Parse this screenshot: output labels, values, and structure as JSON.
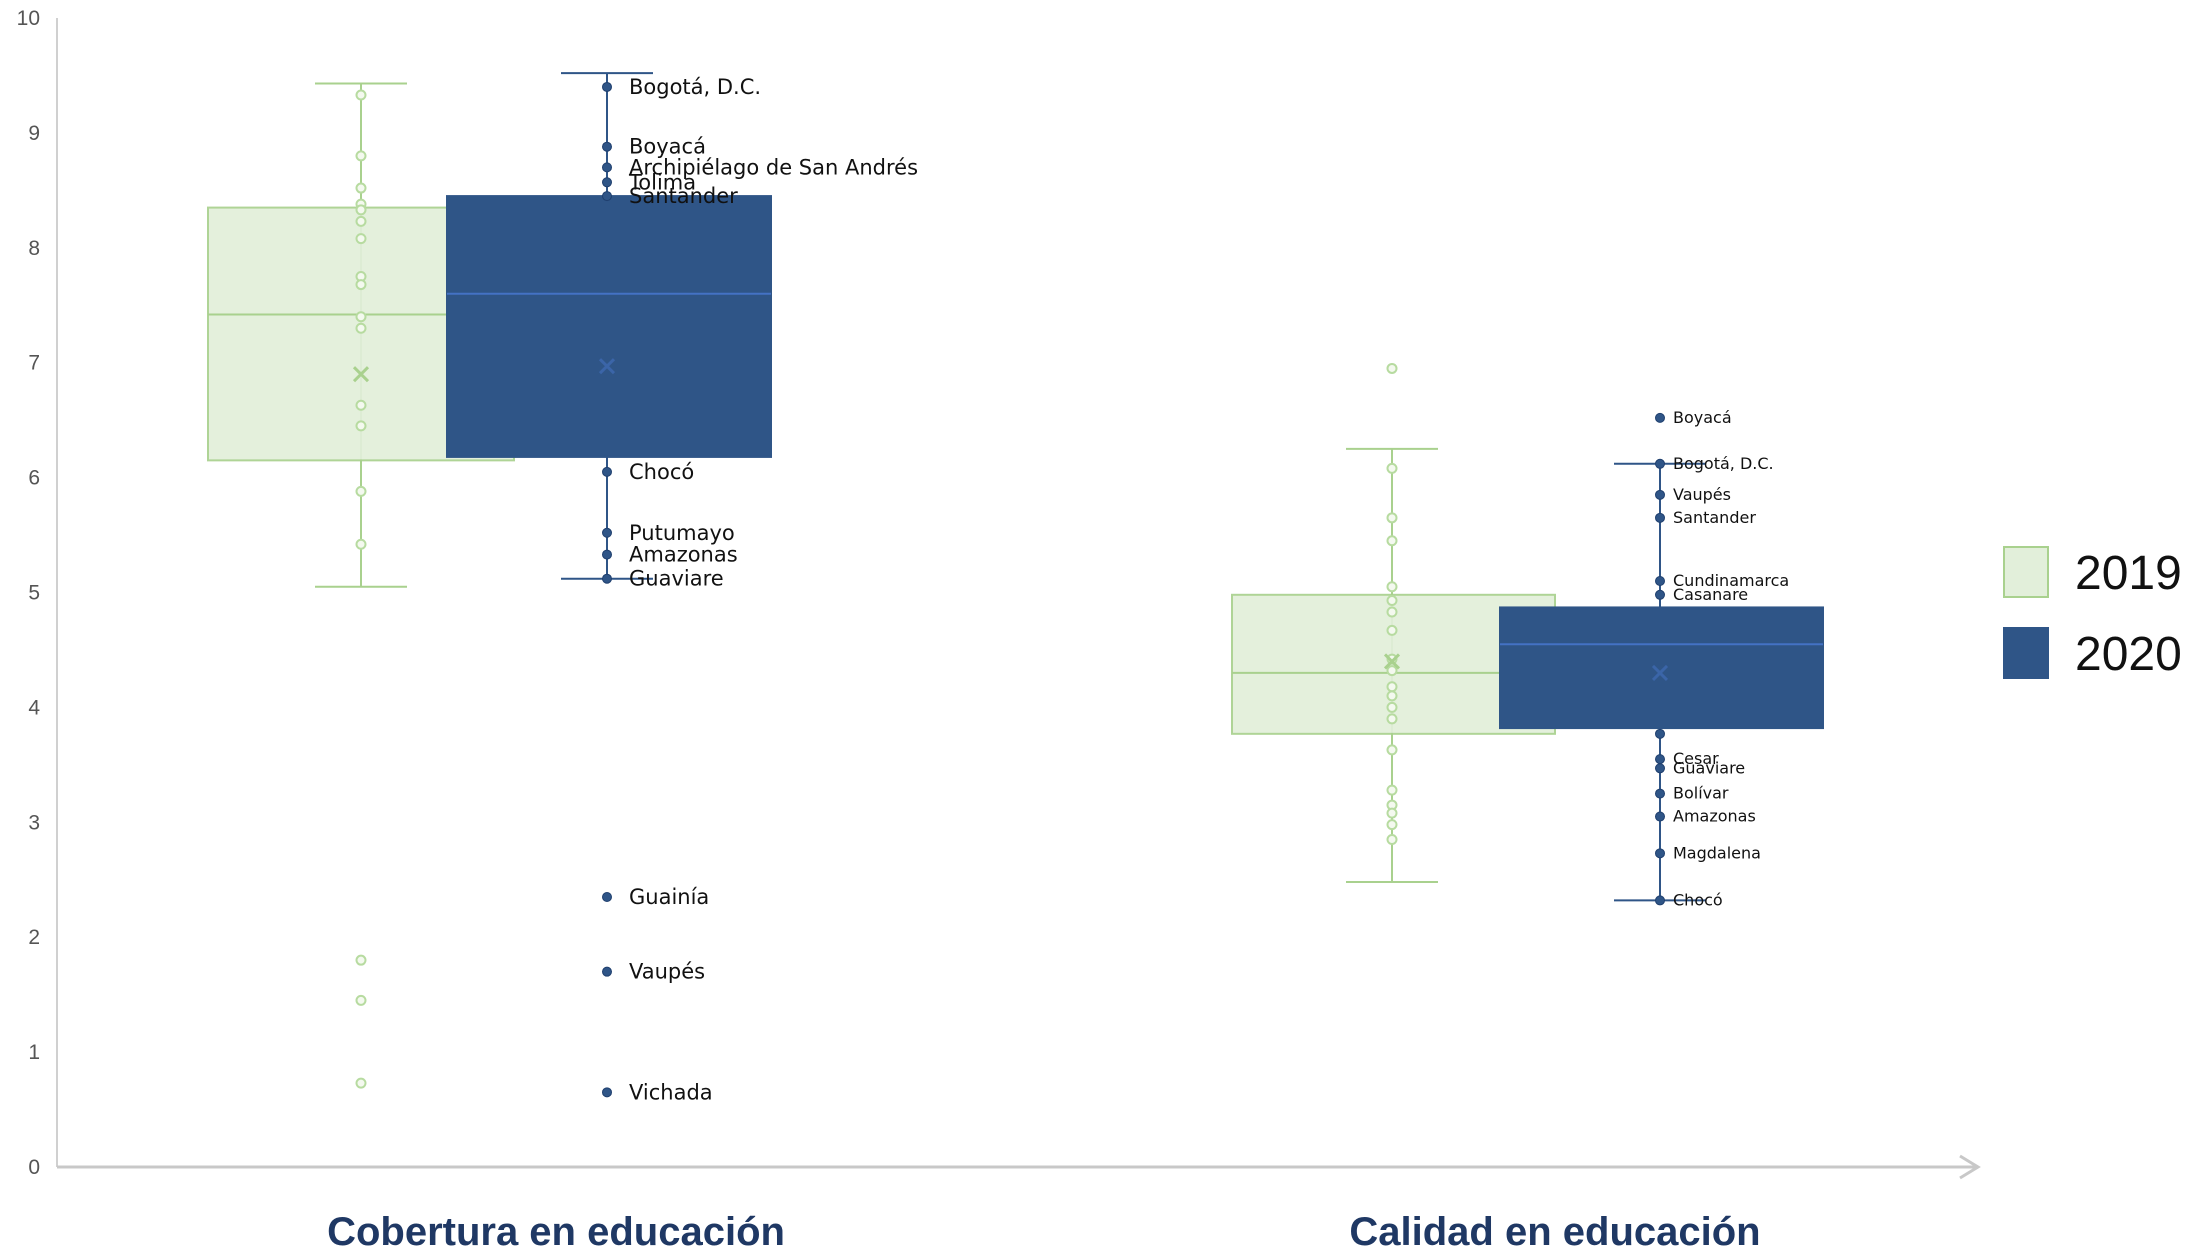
{
  "chart_data": {
    "type": "box",
    "ylim": [
      0,
      10
    ],
    "yticks": [
      "0",
      "1",
      "2",
      "3",
      "4",
      "5",
      "6",
      "7",
      "8",
      "9",
      "10"
    ],
    "categories": [
      "Cobertura en educación",
      "Calidad en educación"
    ],
    "legend": [
      {
        "label": "2019",
        "color": "#e2efda",
        "border": "#a9d18e"
      },
      {
        "label": "2020",
        "color": "#2f5587",
        "border": "#2f5587"
      }
    ],
    "groups": [
      {
        "category": "Cobertura en educación",
        "series": [
          {
            "year": "2019",
            "whisker_low": 5.05,
            "q1": 6.15,
            "median": 7.42,
            "q3": 8.35,
            "whisker_high": 9.43,
            "mean": 6.9,
            "points": [
              9.33,
              8.8,
              8.52,
              8.38,
              8.33,
              8.23,
              8.08,
              7.75,
              7.68,
              7.4,
              7.3,
              6.63,
              6.45,
              5.88,
              5.42,
              1.8,
              1.45,
              0.73
            ]
          },
          {
            "year": "2020",
            "whisker_low": 5.12,
            "q1": 6.18,
            "median": 7.6,
            "q3": 8.45,
            "whisker_high": 9.52,
            "mean": 6.97,
            "points": [
              {
                "v": 9.4,
                "label": "Bogotá, D.C."
              },
              {
                "v": 8.88,
                "label": "Boyacá"
              },
              {
                "v": 8.7,
                "label": "Archipiélago de San Andrés"
              },
              {
                "v": 8.57,
                "label": "Tolima"
              },
              {
                "v": 8.45,
                "label": "Santander"
              },
              {
                "v": 6.05,
                "label": "Chocó"
              },
              {
                "v": 5.52,
                "label": "Putumayo"
              },
              {
                "v": 5.33,
                "label": "Amazonas"
              },
              {
                "v": 5.12,
                "label": "Guaviare"
              },
              {
                "v": 2.35,
                "label": "Guainía"
              },
              {
                "v": 1.7,
                "label": "Vaupés"
              },
              {
                "v": 0.65,
                "label": "Vichada"
              }
            ]
          }
        ]
      },
      {
        "category": "Calidad en educación",
        "series": [
          {
            "year": "2019",
            "whisker_low": 2.48,
            "q1": 3.77,
            "median": 4.3,
            "q3": 4.98,
            "whisker_high": 6.25,
            "mean": 4.4,
            "points": [
              6.95,
              6.08,
              5.65,
              5.45,
              5.05,
              4.93,
              4.83,
              4.67,
              4.42,
              4.32,
              4.18,
              4.1,
              4.0,
              3.9,
              3.63,
              3.28,
              3.15,
              3.08,
              2.98,
              2.85
            ]
          },
          {
            "year": "2020",
            "whisker_low": 2.32,
            "q1": 3.82,
            "median": 4.55,
            "q3": 4.87,
            "whisker_high": 6.12,
            "mean": 4.3,
            "points": [
              {
                "v": 6.52,
                "label": "Boyacá"
              },
              {
                "v": 6.12,
                "label": "Bogotá, D.C."
              },
              {
                "v": 5.85,
                "label": "Vaupés"
              },
              {
                "v": 5.65,
                "label": "Santander"
              },
              {
                "v": 5.1,
                "label": "Cundinamarca"
              },
              {
                "v": 4.98,
                "label": "Casanare"
              },
              {
                "v": 3.77,
                "label": ""
              },
              {
                "v": 3.55,
                "label": "Cesar"
              },
              {
                "v": 3.47,
                "label": "Guaviare"
              },
              {
                "v": 3.25,
                "label": "Bolívar"
              },
              {
                "v": 3.05,
                "label": "Amazonas"
              },
              {
                "v": 2.73,
                "label": "Magdalena"
              },
              {
                "v": 2.32,
                "label": "Chocó"
              }
            ]
          }
        ]
      }
    ]
  }
}
